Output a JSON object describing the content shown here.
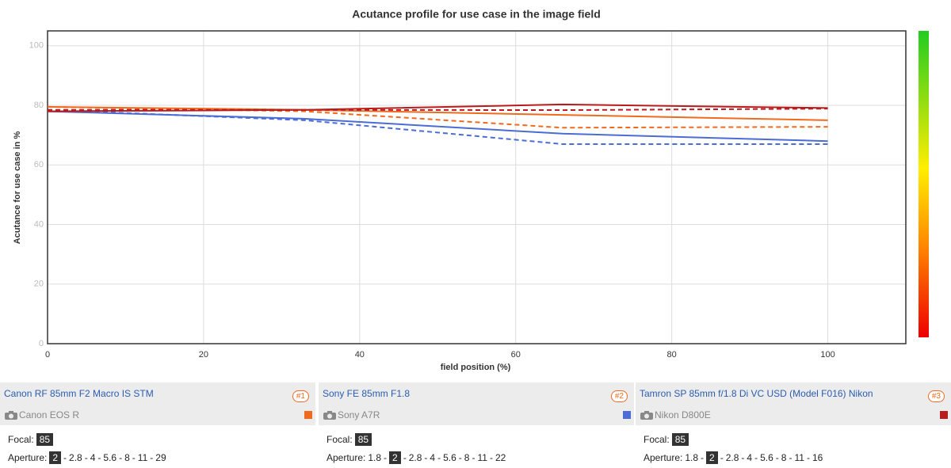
{
  "chart_data": {
    "type": "line",
    "title": "Acutance profile for use case in the image field",
    "x_label": "field position (%)",
    "y_label": "Acutance for use case in %",
    "x": [
      0,
      33,
      66,
      100
    ],
    "xlim": [
      0,
      110
    ],
    "xticks": [
      0,
      20,
      40,
      60,
      80,
      100
    ],
    "ylim": [
      0,
      105
    ],
    "yticks": [
      0,
      20,
      40,
      60,
      80,
      100
    ],
    "grid": true,
    "series": [
      {
        "color": "#f06a1e",
        "dashed": false,
        "values": [
          79.5,
          78.5,
          76.8,
          75
        ]
      },
      {
        "color": "#f06a1e",
        "dashed": true,
        "values": [
          79.5,
          78,
          72.5,
          72.8
        ]
      },
      {
        "color": "#4a6cd4",
        "dashed": false,
        "values": [
          78,
          75.5,
          70.5,
          68
        ]
      },
      {
        "color": "#4a6cd4",
        "dashed": true,
        "values": [
          78.5,
          75,
          67,
          67
        ]
      },
      {
        "color": "#b81c1c",
        "dashed": false,
        "values": [
          78,
          78.5,
          80.3,
          79.1
        ]
      },
      {
        "color": "#b81c1c",
        "dashed": true,
        "values": [
          78.5,
          78.5,
          78.4,
          78.9
        ]
      }
    ]
  },
  "lenses": [
    {
      "name": "Canon RF 85mm F2 Macro IS STM",
      "badge": "#1",
      "camera": "Canon EOS R",
      "color": "#f06a1e",
      "focal_label": "Focal:",
      "focal": 85,
      "aperture_label": "Aperture:",
      "separator": "-",
      "apertures": [
        2,
        2.8,
        4,
        5.6,
        8,
        11,
        29
      ],
      "selected_aperture": 2
    },
    {
      "name": "Sony FE 85mm F1.8",
      "badge": "#2",
      "camera": "Sony A7R",
      "color": "#4a6cd4",
      "focal_label": "Focal:",
      "focal": 85,
      "aperture_label": "Aperture:",
      "separator": "-",
      "apertures": [
        1.8,
        2,
        2.8,
        4,
        5.6,
        8,
        11,
        22
      ],
      "selected_aperture": 2
    },
    {
      "name": "Tamron SP 85mm f/1.8 Di VC USD (Model F016) Nikon",
      "badge": "#3",
      "camera": "Nikon D800E",
      "color": "#b81c1c",
      "focal_label": "Focal:",
      "focal": 85,
      "aperture_label": "Aperture:",
      "separator": "-",
      "apertures": [
        1.8,
        2,
        2.8,
        4,
        5.6,
        8,
        11,
        16
      ],
      "selected_aperture": 2
    }
  ]
}
